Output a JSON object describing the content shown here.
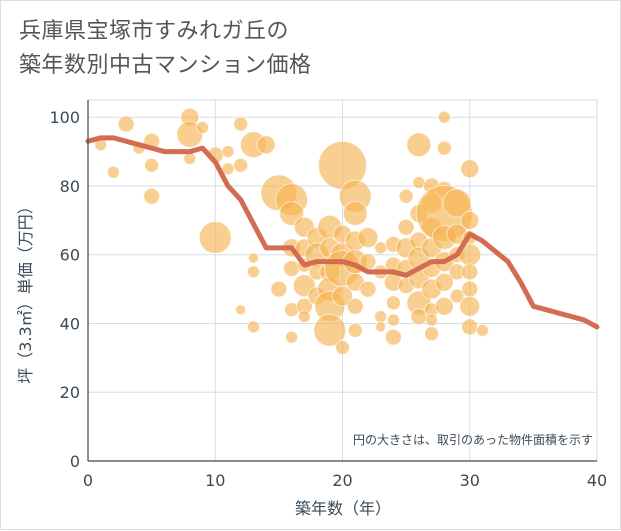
{
  "chart_data": {
    "type": "scatter",
    "title_lines": [
      "兵庫県宝塚市すみれガ丘の",
      "築年数別中古マンション価格"
    ],
    "xlabel": "築年数（年）",
    "ylabel": "坪（3.3㎡）単価（万円）",
    "note": "円の大きさは、取引のあった物件面積を示す",
    "xlim": [
      0,
      40
    ],
    "ylim": [
      0,
      105
    ],
    "x_ticks": [
      0,
      10,
      20,
      30,
      40
    ],
    "y_ticks": [
      0,
      20,
      40,
      60,
      80,
      100
    ],
    "grid": true,
    "colors": {
      "bubble": "#f5b14e",
      "line": "#d26c52",
      "grid": "#d6dde3",
      "axis": "#3b4a56"
    },
    "bubbles": [
      {
        "x": 1,
        "y": 92,
        "r": 6
      },
      {
        "x": 2,
        "y": 84,
        "r": 6
      },
      {
        "x": 3,
        "y": 98,
        "r": 8
      },
      {
        "x": 4,
        "y": 91,
        "r": 6
      },
      {
        "x": 5,
        "y": 93,
        "r": 8
      },
      {
        "x": 5,
        "y": 86,
        "r": 7
      },
      {
        "x": 5,
        "y": 77,
        "r": 8
      },
      {
        "x": 8,
        "y": 100,
        "r": 9
      },
      {
        "x": 8,
        "y": 95,
        "r": 13
      },
      {
        "x": 8,
        "y": 88,
        "r": 6
      },
      {
        "x": 9,
        "y": 97,
        "r": 6
      },
      {
        "x": 10,
        "y": 89,
        "r": 8
      },
      {
        "x": 10,
        "y": 65,
        "r": 16
      },
      {
        "x": 11,
        "y": 90,
        "r": 6
      },
      {
        "x": 11,
        "y": 85,
        "r": 6
      },
      {
        "x": 12,
        "y": 98,
        "r": 7
      },
      {
        "x": 12,
        "y": 86,
        "r": 7
      },
      {
        "x": 13,
        "y": 92,
        "r": 13
      },
      {
        "x": 13,
        "y": 59,
        "r": 5
      },
      {
        "x": 13,
        "y": 55,
        "r": 6
      },
      {
        "x": 13,
        "y": 39,
        "r": 6
      },
      {
        "x": 12,
        "y": 44,
        "r": 5
      },
      {
        "x": 14,
        "y": 92,
        "r": 9
      },
      {
        "x": 15,
        "y": 78,
        "r": 18
      },
      {
        "x": 15,
        "y": 50,
        "r": 8
      },
      {
        "x": 16,
        "y": 76,
        "r": 16
      },
      {
        "x": 16,
        "y": 72,
        "r": 12
      },
      {
        "x": 16,
        "y": 62,
        "r": 9
      },
      {
        "x": 16,
        "y": 56,
        "r": 8
      },
      {
        "x": 16,
        "y": 44,
        "r": 7
      },
      {
        "x": 16,
        "y": 36,
        "r": 6
      },
      {
        "x": 17,
        "y": 68,
        "r": 10
      },
      {
        "x": 17,
        "y": 62,
        "r": 9
      },
      {
        "x": 17,
        "y": 57,
        "r": 7
      },
      {
        "x": 17,
        "y": 51,
        "r": 11
      },
      {
        "x": 17,
        "y": 45,
        "r": 8
      },
      {
        "x": 17,
        "y": 42,
        "r": 6
      },
      {
        "x": 18,
        "y": 65,
        "r": 10
      },
      {
        "x": 18,
        "y": 60,
        "r": 12
      },
      {
        "x": 18,
        "y": 55,
        "r": 8
      },
      {
        "x": 18,
        "y": 48,
        "r": 9
      },
      {
        "x": 19,
        "y": 68,
        "r": 12
      },
      {
        "x": 19,
        "y": 62,
        "r": 10
      },
      {
        "x": 19,
        "y": 55,
        "r": 10
      },
      {
        "x": 19,
        "y": 50,
        "r": 12
      },
      {
        "x": 19,
        "y": 45,
        "r": 15
      },
      {
        "x": 19,
        "y": 38,
        "r": 16
      },
      {
        "x": 20,
        "y": 86,
        "r": 24
      },
      {
        "x": 20,
        "y": 66,
        "r": 9
      },
      {
        "x": 20,
        "y": 60,
        "r": 12
      },
      {
        "x": 20,
        "y": 56,
        "r": 18
      },
      {
        "x": 20,
        "y": 48,
        "r": 10
      },
      {
        "x": 20,
        "y": 33,
        "r": 7
      },
      {
        "x": 21,
        "y": 77,
        "r": 16
      },
      {
        "x": 21,
        "y": 72,
        "r": 12
      },
      {
        "x": 21,
        "y": 64,
        "r": 10
      },
      {
        "x": 21,
        "y": 58,
        "r": 12
      },
      {
        "x": 21,
        "y": 52,
        "r": 9
      },
      {
        "x": 21,
        "y": 45,
        "r": 8
      },
      {
        "x": 21,
        "y": 38,
        "r": 7
      },
      {
        "x": 22,
        "y": 65,
        "r": 10
      },
      {
        "x": 22,
        "y": 58,
        "r": 8
      },
      {
        "x": 22,
        "y": 50,
        "r": 8
      },
      {
        "x": 23,
        "y": 62,
        "r": 6
      },
      {
        "x": 23,
        "y": 55,
        "r": 7
      },
      {
        "x": 23,
        "y": 42,
        "r": 6
      },
      {
        "x": 23,
        "y": 39,
        "r": 5
      },
      {
        "x": 24,
        "y": 63,
        "r": 8
      },
      {
        "x": 24,
        "y": 57,
        "r": 8
      },
      {
        "x": 24,
        "y": 52,
        "r": 9
      },
      {
        "x": 24,
        "y": 46,
        "r": 7
      },
      {
        "x": 24,
        "y": 41,
        "r": 6
      },
      {
        "x": 24,
        "y": 36,
        "r": 8
      },
      {
        "x": 25,
        "y": 77,
        "r": 7
      },
      {
        "x": 25,
        "y": 68,
        "r": 8
      },
      {
        "x": 25,
        "y": 62,
        "r": 10
      },
      {
        "x": 25,
        "y": 56,
        "r": 9
      },
      {
        "x": 25,
        "y": 51,
        "r": 8
      },
      {
        "x": 26,
        "y": 92,
        "r": 12
      },
      {
        "x": 26,
        "y": 81,
        "r": 6
      },
      {
        "x": 26,
        "y": 72,
        "r": 9
      },
      {
        "x": 26,
        "y": 64,
        "r": 9
      },
      {
        "x": 26,
        "y": 59,
        "r": 11
      },
      {
        "x": 26,
        "y": 53,
        "r": 10
      },
      {
        "x": 26,
        "y": 46,
        "r": 12
      },
      {
        "x": 26,
        "y": 42,
        "r": 8
      },
      {
        "x": 27,
        "y": 80,
        "r": 8
      },
      {
        "x": 27,
        "y": 75,
        "r": 10
      },
      {
        "x": 27,
        "y": 68,
        "r": 10
      },
      {
        "x": 27,
        "y": 62,
        "r": 10
      },
      {
        "x": 27,
        "y": 56,
        "r": 9
      },
      {
        "x": 27,
        "y": 50,
        "r": 10
      },
      {
        "x": 27,
        "y": 44,
        "r": 7
      },
      {
        "x": 27,
        "y": 41,
        "r": 6
      },
      {
        "x": 27,
        "y": 37,
        "r": 7
      },
      {
        "x": 28,
        "y": 100,
        "r": 6
      },
      {
        "x": 28,
        "y": 91,
        "r": 7
      },
      {
        "x": 28,
        "y": 79,
        "r": 8
      },
      {
        "x": 28,
        "y": 72,
        "r": 28
      },
      {
        "x": 28,
        "y": 65,
        "r": 12
      },
      {
        "x": 28,
        "y": 58,
        "r": 10
      },
      {
        "x": 28,
        "y": 52,
        "r": 9
      },
      {
        "x": 28,
        "y": 45,
        "r": 9
      },
      {
        "x": 29,
        "y": 75,
        "r": 14
      },
      {
        "x": 29,
        "y": 66,
        "r": 10
      },
      {
        "x": 29,
        "y": 60,
        "r": 8
      },
      {
        "x": 29,
        "y": 55,
        "r": 8
      },
      {
        "x": 29,
        "y": 48,
        "r": 7
      },
      {
        "x": 30,
        "y": 85,
        "r": 9
      },
      {
        "x": 30,
        "y": 70,
        "r": 9
      },
      {
        "x": 30,
        "y": 65,
        "r": 7
      },
      {
        "x": 30,
        "y": 60,
        "r": 11
      },
      {
        "x": 30,
        "y": 55,
        "r": 8
      },
      {
        "x": 30,
        "y": 50,
        "r": 8
      },
      {
        "x": 30,
        "y": 45,
        "r": 10
      },
      {
        "x": 30,
        "y": 39,
        "r": 8
      },
      {
        "x": 31,
        "y": 38,
        "r": 6
      }
    ],
    "line": {
      "x": [
        0,
        1,
        2,
        3,
        4,
        5,
        6,
        7,
        8,
        9,
        10,
        11,
        12,
        13,
        14,
        15,
        16,
        17,
        18,
        19,
        20,
        21,
        22,
        23,
        24,
        25,
        26,
        27,
        28,
        29,
        30,
        31,
        32,
        33,
        34,
        35,
        36,
        37,
        38,
        39,
        40
      ],
      "y": [
        93,
        94,
        94,
        93,
        92,
        91,
        90,
        90,
        90,
        91,
        87,
        80,
        76,
        69,
        62,
        62,
        62,
        57,
        58,
        58,
        58,
        57,
        55,
        55,
        55,
        54,
        56,
        58,
        58,
        60,
        66,
        64,
        61,
        58,
        52,
        45,
        44,
        43,
        42,
        41,
        39
      ]
    }
  }
}
